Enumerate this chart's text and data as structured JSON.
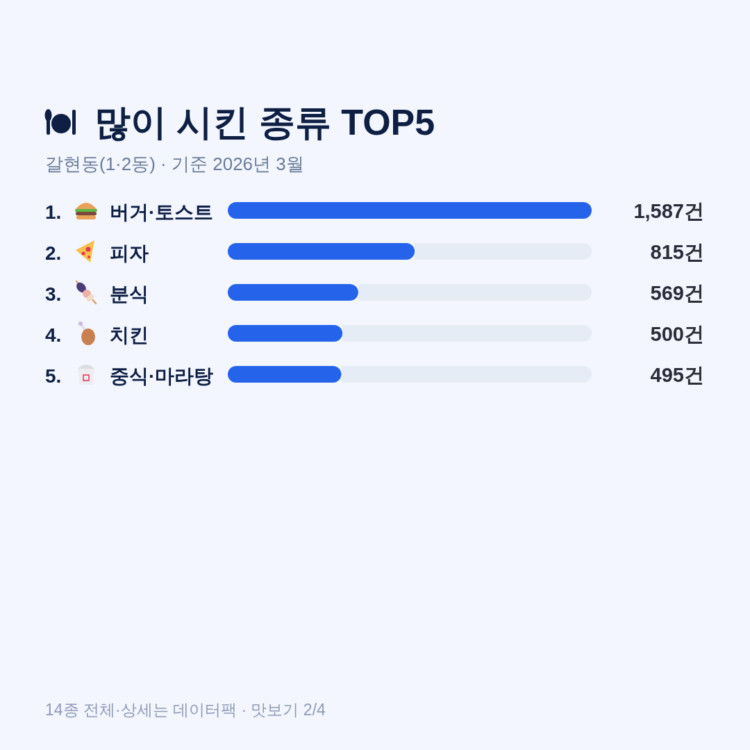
{
  "chart_data": {
    "type": "bar",
    "orientation": "horizontal",
    "title": "많이 시킨 종류 TOP5",
    "subtitle": "갈현동(1·2동) · 기준 2026년 3월",
    "categories": [
      "1. 버거·토스트",
      "2. 피자",
      "3. 분식",
      "4. 치킨",
      "5. 중식·마라탕"
    ],
    "values": [
      1587,
      815,
      569,
      500,
      495
    ],
    "color": "#2563eb",
    "value_labels": [
      "1,587건",
      "815건",
      "569건",
      "500건",
      "495건"
    ],
    "annotations": [
      "14종 전체·상세는 데이터팩 · 맛보기 2/4"
    ]
  }
}
